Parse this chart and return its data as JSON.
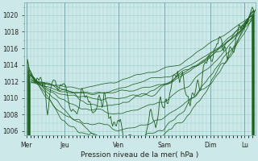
{
  "title": "",
  "xlabel": "Pression niveau de la mer( hPa )",
  "background_color": "#cce8e8",
  "plot_bg_color": "#cce8e8",
  "grid_color": "#99cccc",
  "line_color": "#1a5c1a",
  "ylim": [
    1005.5,
    1021.5
  ],
  "yticks": [
    1006,
    1008,
    1010,
    1012,
    1014,
    1016,
    1018,
    1020
  ],
  "day_labels": [
    "Mer",
    "Jeu",
    "Ven",
    "Sam",
    "Dim",
    "Lu"
  ],
  "day_positions": [
    0,
    40,
    96,
    144,
    192,
    228
  ],
  "total_points": 240,
  "figsize": [
    3.2,
    2.0
  ],
  "dpi": 100
}
